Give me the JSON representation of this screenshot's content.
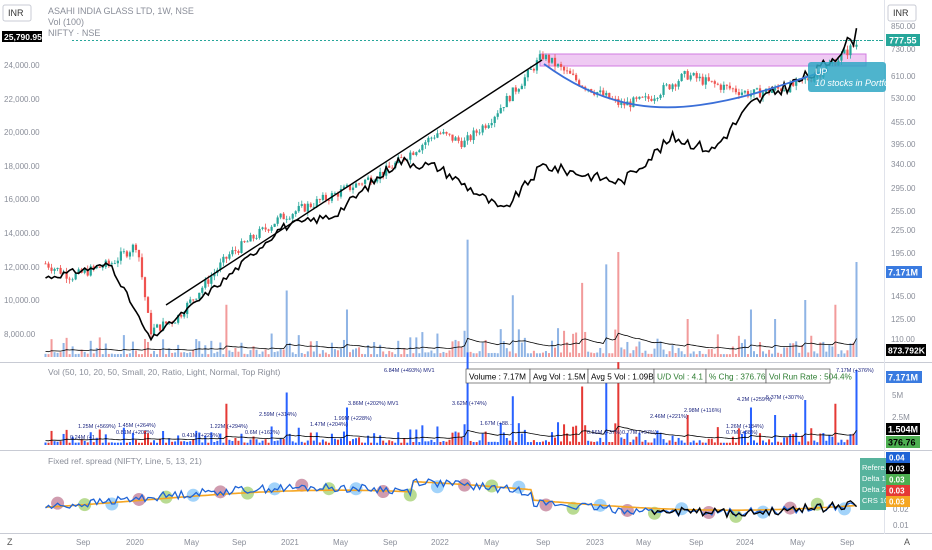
{
  "header": {
    "currency_left": "INR",
    "currency_right": "INR",
    "symbol_line": "ASAHI INDIA GLASS LTD, 1W, NSE",
    "vol_line": "Vol (100)",
    "compare_line": "NIFTY · NSE",
    "nifty_value": "25,790.95"
  },
  "price_axis_right": [
    "850.00",
    "730.00",
    "610.00",
    "530.00",
    "455.00",
    "395.00",
    "340.00",
    "295.00",
    "255.00",
    "225.00",
    "195.00",
    "170.00",
    "145.00",
    "125.00",
    "110.00"
  ],
  "price_axis_left": [
    "24,000.00",
    "22,000.00",
    "20,000.00",
    "18,000.00",
    "16,000.00",
    "14,000.00",
    "12,000.00",
    "10,000.00",
    "8,000.00"
  ],
  "badges": {
    "last_price": "777.55",
    "vol_last": "7.171M",
    "vol_ma": "873.792K",
    "vol_pane_last": "7.171M",
    "vol_pane_avg": "1.504M",
    "vol_pane_chg": "376.76",
    "spread_badges": [
      "0.04",
      "0.03",
      "0.03",
      "0.03",
      "0.03"
    ]
  },
  "annotation": {
    "tag": "UP",
    "text": "10 stocks in Portfo"
  },
  "vol_pane": {
    "title": "Vol (50, 10, 20, 50, Small, 20, Ratio, Light, Normal, Top Right)",
    "stats": [
      "Volume : 7.17M",
      "Avg Vol : 1.5M",
      "Avg 5 Vol : 1.09B",
      "U/D Vol : 4.1",
      "% Chg : 376.76%",
      "Vol Run Rate : 504.4%"
    ],
    "axis": [
      "5M",
      "2.5M",
      "0"
    ],
    "spike_labels": [
      {
        "t": "0.24M (+1...",
        "x": 70,
        "y": 439
      },
      {
        "t": "1.25M (+569%)",
        "x": 78,
        "y": 428
      },
      {
        "t": "0.81M (+202%)",
        "x": 116,
        "y": 434
      },
      {
        "t": "1.45M (+264%)",
        "x": 118,
        "y": 427
      },
      {
        "t": "0.41M (+225%)",
        "x": 182,
        "y": 437
      },
      {
        "t": "1.22M (+294%)",
        "x": 210,
        "y": 428
      },
      {
        "t": "0.6M (+162%)",
        "x": 245,
        "y": 434
      },
      {
        "t": "2.59M (+314%)",
        "x": 259,
        "y": 416
      },
      {
        "t": "1.47M (+204%)",
        "x": 310,
        "y": 426
      },
      {
        "t": "1.99M (+228%)",
        "x": 334,
        "y": 420
      },
      {
        "t": "3.86M (+202%) MV1",
        "x": 348,
        "y": 405
      },
      {
        "t": "6.84M (+493%) MV1",
        "x": 384,
        "y": 372
      },
      {
        "t": "3.62M (+74%)",
        "x": 452,
        "y": 405
      },
      {
        "t": "1.67M (+88...",
        "x": 480,
        "y": 425
      },
      {
        "t": "0.56M (+37%)",
        "x": 587,
        "y": 434
      },
      {
        "t": "0.77M (+97%)",
        "x": 622,
        "y": 434
      },
      {
        "t": "2.46M (+221%)",
        "x": 650,
        "y": 418
      },
      {
        "t": "2.98M (+116%)",
        "x": 684,
        "y": 412
      },
      {
        "t": "0.7M (+88%)",
        "x": 726,
        "y": 434
      },
      {
        "t": "1.26M (+184%)",
        "x": 726,
        "y": 428
      },
      {
        "t": "4.2M (+259%)",
        "x": 737,
        "y": 401
      },
      {
        "t": "5.37M (+307%)",
        "x": 766,
        "y": 399
      },
      {
        "t": "7.17M (+376%)",
        "x": 836,
        "y": 372
      }
    ]
  },
  "spread_pane": {
    "title": "Fixed ref. spread (NIFTY, Line, 5, 13, 21)",
    "axis": [
      "0.04",
      "0.03",
      "0.03",
      "0.02",
      "0.01"
    ],
    "legend": [
      "Refere...",
      "Delta 1",
      "Delta 2",
      "CRS 10"
    ]
  },
  "time_axis": [
    "Sep",
    "2020",
    "May",
    "Sep",
    "2021",
    "May",
    "Sep",
    "2022",
    "May",
    "Sep",
    "2023",
    "May",
    "Sep",
    "2024",
    "May",
    "Sep"
  ],
  "colors": {
    "up": "#26a69a",
    "down": "#ef5350",
    "vol_up": "#7ba7e0",
    "vol_down": "#f08a8a",
    "nifty_line": "#000000",
    "cup_curve": "#3b6fd8",
    "resistance_zone": "#e9b8ef",
    "spread_blue": "#1e63d6",
    "spread_orange": "#f5a623"
  },
  "chart_data": [
    {
      "type": "candlestick",
      "title": "ASAHI INDIA GLASS LTD, 1W, NSE",
      "ylim": [
        100,
        900
      ],
      "y_scale": "log",
      "x_ticks": [
        "Sep",
        "2020",
        "May",
        "Sep",
        "2021",
        "May",
        "Sep",
        "2022",
        "May",
        "Sep",
        "2023",
        "May",
        "Sep",
        "2024",
        "May",
        "Sep"
      ],
      "series": [
        {
          "name": "ASAHI INDIA GLASS LTD",
          "x": [
            "2019-07",
            "2019-09",
            "2019-12",
            "2020-02",
            "2020-03",
            "2020-05",
            "2020-09",
            "2021-01",
            "2021-05",
            "2021-09",
            "2022-01",
            "2022-03",
            "2022-05",
            "2022-08",
            "2022-09",
            "2022-12",
            "2023-03",
            "2023-05",
            "2023-08",
            "2023-10",
            "2024-01",
            "2024-04",
            "2024-06",
            "2024-09"
          ],
          "values": [
            175,
            160,
            175,
            200,
            110,
            120,
            185,
            240,
            280,
            330,
            430,
            400,
            470,
            650,
            730,
            600,
            520,
            540,
            640,
            600,
            560,
            590,
            640,
            790
          ]
        }
      ],
      "last_value": 777.55
    },
    {
      "type": "line",
      "title": "NIFTY · NSE",
      "ylim": [
        7000,
        26500
      ],
      "series": [
        {
          "name": "NIFTY",
          "x": [
            "2019-07",
            "2019-12",
            "2020-03",
            "2020-09",
            "2021-01",
            "2021-05",
            "2021-10",
            "2022-01",
            "2022-06",
            "2022-09",
            "2023-03",
            "2023-07",
            "2023-10",
            "2024-01",
            "2024-06",
            "2024-09"
          ],
          "values": [
            11300,
            12100,
            7600,
            11400,
            14300,
            15000,
            18300,
            17900,
            15300,
            18000,
            17000,
            19700,
            18900,
            21700,
            23600,
            25790.95
          ]
        }
      ]
    },
    {
      "type": "bar",
      "title": "Vol (100)",
      "series": [
        {
          "name": "Vol",
          "x": [
            "2020-04",
            "2021-10",
            "2022-09",
            "2024-09"
          ],
          "values": [
            3.86,
            6.84,
            5.0,
            7.171
          ]
        }
      ],
      "ma_last": "873.792K",
      "unit": "M"
    },
    {
      "type": "line",
      "title": "Fixed ref. spread (NIFTY, Line, 5, 13, 21)",
      "ylim": [
        0.01,
        0.04
      ],
      "series": [
        {
          "name": "Delta 1",
          "x": [
            "2019-07",
            "2020-03",
            "2021-01",
            "2022-01",
            "2022-08",
            "2023-04",
            "2024-01",
            "2024-09"
          ],
          "values": [
            0.022,
            0.018,
            0.021,
            0.026,
            0.031,
            0.026,
            0.024,
            0.026
          ]
        },
        {
          "name": "Delta 2",
          "x": [
            "2019-07",
            "2020-03",
            "2021-01",
            "2022-01",
            "2022-08",
            "2023-04",
            "2024-01",
            "2024-09"
          ],
          "values": [
            0.022,
            0.019,
            0.021,
            0.024,
            0.028,
            0.027,
            0.025,
            0.025
          ]
        }
      ]
    }
  ]
}
